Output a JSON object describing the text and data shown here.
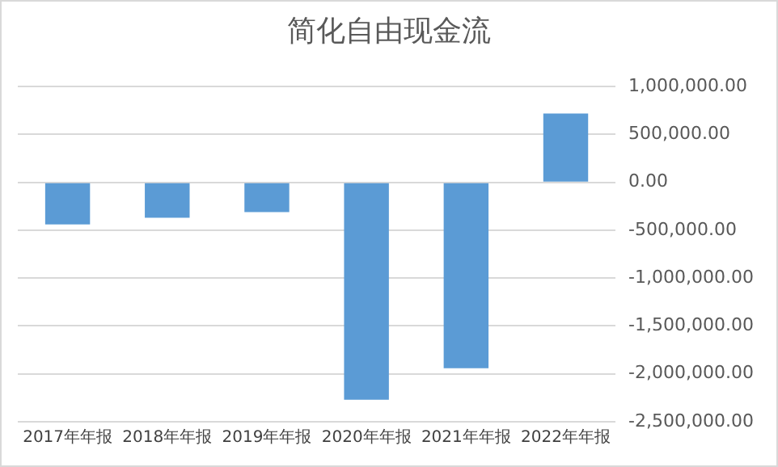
{
  "chart_data": {
    "type": "bar",
    "title": "简化自由现金流",
    "categories": [
      "2017年年报",
      "2018年年报",
      "2019年年报",
      "2020年年报",
      "2021年年报",
      "2022年年报"
    ],
    "values": [
      -440000,
      -370000,
      -310000,
      -2270000,
      -1940000,
      720000
    ],
    "color": "#5b9bd5",
    "ylim": [
      -2500000,
      1000000
    ],
    "yticks": [
      {
        "value": -2500000,
        "label": "-2,500,000.00"
      },
      {
        "value": -2000000,
        "label": "-2,000,000.00"
      },
      {
        "value": -1500000,
        "label": "-1,500,000.00"
      },
      {
        "value": -1000000,
        "label": "-1,000,000.00"
      },
      {
        "value": -500000,
        "label": "-500,000.00"
      },
      {
        "value": 0,
        "label": "0.00"
      },
      {
        "value": 500000,
        "label": "500,000.00"
      },
      {
        "value": 1000000,
        "label": "1,000,000.00"
      }
    ],
    "grid": "y",
    "legend": false
  }
}
